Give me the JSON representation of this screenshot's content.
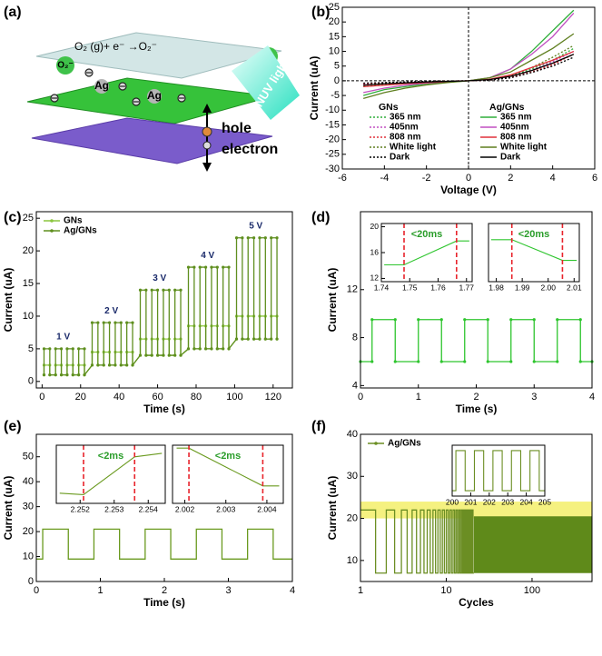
{
  "panel_a": {
    "panel_label": "(a)",
    "reaction": "O₂ (g)+ e⁻ →O₂⁻",
    "oxygen_labels": [
      "O₂⁻",
      "O₂"
    ],
    "silver_labels": [
      "Ag",
      "Ag"
    ],
    "light": "NUV light",
    "carriers": [
      "hole",
      "electron"
    ]
  },
  "chart_data": [
    {
      "type": "line",
      "panel_label": "(b)",
      "x_label": "Voltage (V)",
      "y_label": "Current (uA)",
      "x": [
        -5,
        -4,
        -3,
        -2,
        -1,
        0,
        1,
        2,
        3,
        4,
        5
      ],
      "series": [
        {
          "name": "365 nm",
          "color": "#2fae3a",
          "line_style": "dotted",
          "values": [
            -1.5,
            -1,
            -0.7,
            -0.4,
            -0.2,
            0,
            0.3,
            1.5,
            4,
            7,
            11
          ]
        },
        {
          "name": "405nm",
          "color": "#c04fc0",
          "line_style": "dotted",
          "values": [
            -1.2,
            -0.9,
            -0.6,
            -0.3,
            -0.1,
            0,
            0.3,
            1.3,
            3.5,
            6.5,
            10
          ]
        },
        {
          "name": "808 nm",
          "color": "#e0303a",
          "line_style": "dotted",
          "values": [
            -1,
            -0.8,
            -0.5,
            -0.3,
            -0.1,
            0,
            0.2,
            1.2,
            3,
            5.5,
            9
          ]
        },
        {
          "name": "White light",
          "color": "#5f7f1f",
          "line_style": "dotted",
          "values": [
            -2,
            -1.3,
            -0.8,
            -0.5,
            -0.2,
            0,
            0.4,
            1.8,
            4.5,
            8,
            12
          ]
        },
        {
          "name": "Dark",
          "color": "#000000",
          "line_style": "dotted",
          "values": [
            -0.8,
            -0.6,
            -0.4,
            -0.2,
            -0.1,
            0,
            0.2,
            1,
            2.8,
            5,
            8
          ]
        },
        {
          "name": "365 nm",
          "color": "#2fae3a",
          "line_style": "solid",
          "values": [
            -5,
            -3,
            -2,
            -1,
            -0.5,
            0,
            1,
            4,
            10,
            17,
            24
          ]
        },
        {
          "name": "405nm",
          "color": "#c04fc0",
          "line_style": "solid",
          "values": [
            -4,
            -2.5,
            -1.5,
            -0.8,
            -0.3,
            0,
            1,
            4,
            9,
            15,
            23
          ]
        },
        {
          "name": "808 nm",
          "color": "#e0303a",
          "line_style": "solid",
          "values": [
            -2,
            -1.5,
            -1,
            -0.6,
            -0.3,
            0,
            0.5,
            2,
            4.5,
            7,
            10
          ]
        },
        {
          "name": "White light",
          "color": "#5f7f1f",
          "line_style": "solid",
          "values": [
            -6,
            -4,
            -2.5,
            -1.4,
            -0.6,
            0,
            1,
            3,
            7,
            11,
            16
          ]
        },
        {
          "name": "Dark",
          "color": "#000000",
          "line_style": "solid",
          "values": [
            -1.5,
            -1,
            -0.7,
            -0.4,
            -0.2,
            0,
            0.4,
            1.5,
            3.5,
            6,
            9
          ]
        }
      ],
      "legend": "lower right",
      "legend_titles": [
        "GNs",
        "Ag/GNs"
      ],
      "zero_lines": true,
      "xlim": [
        -6,
        6
      ],
      "xticks": [
        -6,
        -4,
        -2,
        0,
        2,
        4,
        6
      ],
      "ylim": [
        -30,
        25
      ],
      "yticks": [
        -30,
        -25,
        -20,
        -15,
        -10,
        -5,
        0,
        5,
        10,
        15,
        20,
        25
      ]
    },
    {
      "type": "line",
      "panel_label": "(c)",
      "x_label": "Time (s)",
      "y_label": "Current (uA)",
      "x": [
        1,
        1,
        4,
        4,
        7,
        7,
        10,
        10,
        13,
        13,
        16,
        16,
        19,
        19,
        22,
        22,
        26,
        26,
        29,
        29,
        32,
        32,
        35,
        35,
        38,
        38,
        41,
        41,
        44,
        44,
        47,
        47,
        51,
        51,
        54,
        54,
        57,
        57,
        60,
        60,
        63,
        63,
        66,
        66,
        69,
        69,
        72,
        72,
        76,
        76,
        79,
        79,
        82,
        82,
        85,
        85,
        88,
        88,
        91,
        91,
        94,
        94,
        97,
        97,
        101,
        101,
        104,
        104,
        107,
        107,
        110,
        110,
        113,
        113,
        116,
        116,
        119,
        119,
        122,
        122
      ],
      "series": [
        {
          "name": "GNs",
          "color": "#8cc63f",
          "values": [
            1,
            2.5,
            2.5,
            1,
            1,
            2.5,
            2.5,
            1,
            1,
            2.5,
            2.5,
            1,
            1,
            2.5,
            2.5,
            1,
            2.5,
            4.5,
            4.5,
            2.5,
            2.5,
            4.5,
            4.5,
            2.5,
            2.5,
            4.5,
            4.5,
            2.5,
            2.5,
            4.5,
            4.5,
            2.5,
            4,
            6.5,
            6.5,
            4,
            4,
            6.5,
            6.5,
            4,
            4,
            6.5,
            6.5,
            4,
            4,
            6.5,
            6.5,
            4,
            5,
            8.5,
            8.5,
            5,
            5,
            8.5,
            8.5,
            5,
            5,
            8.5,
            8.5,
            5,
            5,
            8.5,
            8.5,
            5,
            6.5,
            10,
            10,
            6.5,
            6.5,
            10,
            10,
            6.5,
            6.5,
            10,
            10,
            6.5,
            6.5,
            10,
            10,
            6.5
          ]
        },
        {
          "name": "Ag/GNs",
          "color": "#5f8f1f",
          "values": [
            1,
            5,
            5,
            1,
            1,
            5,
            5,
            1,
            1,
            5,
            5,
            1,
            1,
            5,
            5,
            1,
            2.5,
            9,
            9,
            2.5,
            2.5,
            9,
            9,
            2.5,
            2.5,
            9,
            9,
            2.5,
            2.5,
            9,
            9,
            2.5,
            4,
            14,
            14,
            4,
            4,
            14,
            14,
            4,
            4,
            14,
            14,
            4,
            4,
            14,
            14,
            4,
            5,
            17.5,
            17.5,
            5,
            5,
            17.5,
            17.5,
            5,
            5,
            17.5,
            17.5,
            5,
            5,
            17.5,
            17.5,
            5,
            6.5,
            22,
            22,
            6.5,
            6.5,
            22,
            22,
            6.5,
            6.5,
            22,
            22,
            6.5,
            6.5,
            22,
            22,
            6.5
          ]
        }
      ],
      "annotations": [
        "1 V",
        "2 V",
        "3 V",
        "4 V",
        "5 V"
      ],
      "markers": true,
      "legend": "upper left",
      "xlim": [
        -3,
        130
      ],
      "xticks": [
        0,
        20,
        40,
        60,
        80,
        100,
        120
      ],
      "ylim": [
        -1,
        26
      ],
      "yticks": [
        0,
        5,
        10,
        15,
        20,
        25
      ]
    },
    {
      "type": "line",
      "panel_label": "(d)",
      "x_label": "Time (s)",
      "y_label": "Current (uA)",
      "x": [
        0,
        0.2,
        0.2,
        0.6,
        0.6,
        1,
        1,
        1.4,
        1.4,
        1.8,
        1.8,
        2.2,
        2.2,
        2.6,
        2.6,
        3,
        3,
        3.4,
        3.4,
        3.8,
        3.8,
        4
      ],
      "series": [
        {
          "name": "",
          "color": "#2ec52e",
          "values": [
            6,
            6,
            9.5,
            9.5,
            6,
            6,
            9.5,
            9.5,
            6,
            6,
            9.5,
            9.5,
            6,
            6,
            9.5,
            9.5,
            6,
            6,
            9.5,
            9.5,
            6,
            6
          ]
        }
      ],
      "markers": true,
      "xlim": [
        0,
        4
      ],
      "xticks": [
        0,
        1,
        2,
        3,
        4
      ],
      "ylim": [
        3.8,
        18.5
      ],
      "yticks": [
        4,
        8,
        12
      ],
      "insets": [
        {
          "type": "line",
          "label": "<20ms",
          "x": [
            1.741,
            1.748,
            1.7665,
            1.771
          ],
          "series": [
            {
              "name": "",
              "color": "#2ec52e",
              "values": [
                14.1,
                14.1,
                17.8,
                17.8
              ]
            }
          ],
          "vlines": [
            1.748,
            1.7665
          ],
          "vline_color": "#e8232b",
          "xlim": [
            1.74,
            1.772
          ],
          "xticks": [
            1.74,
            1.75,
            1.76,
            1.77
          ],
          "ylim": [
            11.5,
            20.5
          ],
          "yticks": [
            12,
            16,
            20
          ]
        },
        {
          "type": "line",
          "label": "<20ms",
          "x": [
            1.978,
            1.986,
            2.0055,
            2.011
          ],
          "series": [
            {
              "name": "",
              "color": "#2ec52e",
              "values": [
                18,
                18,
                14.8,
                14.8
              ]
            }
          ],
          "vlines": [
            1.986,
            2.0055
          ],
          "vline_color": "#e8232b",
          "xlim": [
            1.977,
            2.012
          ],
          "xticks": [
            1.98,
            1.99,
            {
              "value": 2,
              "label": "2.00"
            },
            2.01
          ],
          "ylim": [
            11.5,
            20.5
          ],
          "yticks": []
        }
      ]
    },
    {
      "type": "line",
      "panel_label": "(e)",
      "x_label": "Time (s)",
      "y_label": "Current (uA)",
      "x": [
        0,
        0.1,
        0.1,
        0.5,
        0.5,
        0.9,
        0.9,
        1.3,
        1.3,
        1.7,
        1.7,
        2.1,
        2.1,
        2.5,
        2.5,
        2.9,
        2.9,
        3.3,
        3.3,
        3.7,
        3.7,
        4
      ],
      "series": [
        {
          "name": "",
          "color": "#6a9a1f",
          "values": [
            9,
            9,
            21,
            21,
            9,
            9,
            21,
            21,
            9,
            9,
            21,
            21,
            9,
            9,
            21,
            21,
            9,
            9,
            21,
            21,
            9,
            9
          ]
        }
      ],
      "xlim": [
        0,
        4
      ],
      "xticks": [
        0,
        1,
        2,
        3,
        4
      ],
      "ylim": [
        0,
        59
      ],
      "yticks": [
        0,
        10,
        20,
        30,
        40,
        50
      ],
      "insets": [
        {
          "type": "line",
          "label": "<2ms",
          "x": [
            2.2514,
            2.2521,
            2.2536,
            2.2544
          ],
          "series": [
            {
              "name": "",
              "color": "#6a9a1f",
              "values": [
                33.5,
                33,
                46,
                47.2
              ]
            }
          ],
          "vlines": [
            2.2521,
            2.2536
          ],
          "vline_color": "#e8232b",
          "xlim": [
            2.2513,
            2.2545
          ],
          "xticks": [
            2.252,
            2.253,
            2.254
          ],
          "ylim": [
            30,
            50
          ],
          "yticks": []
        },
        {
          "type": "line",
          "label": "<2ms",
          "x": [
            2.0018,
            2.0021,
            2.0039,
            2.0043
          ],
          "series": [
            {
              "name": "",
              "color": "#6a9a1f",
              "values": [
                49,
                49,
                36,
                36
              ]
            }
          ],
          "vlines": [
            2.0021,
            2.0039
          ],
          "vline_color": "#e8232b",
          "xlim": [
            2.0017,
            2.0044
          ],
          "xticks": [
            2.002,
            2.003,
            2.004
          ],
          "ylim": [
            30,
            50
          ],
          "yticks": []
        }
      ]
    },
    {
      "type": "line",
      "panel_label": "(f)",
      "x_label": "Cycles",
      "y_label": "Current (uA)",
      "xscale": "log",
      "x": [
        1,
        1.5,
        1.5,
        2,
        2,
        2.5,
        2.5,
        3,
        3,
        3.5,
        3.5,
        4,
        4,
        4.5,
        4.5,
        5,
        5,
        5.5,
        5.5,
        6,
        6,
        6.5,
        6.5,
        7,
        7,
        7.5,
        7.5,
        8,
        8,
        8.5,
        8.5,
        9,
        9,
        9.5,
        9.5,
        10,
        10,
        10.5,
        10.5,
        11,
        11,
        11.5,
        11.5,
        12,
        12,
        12.5,
        12.5,
        13,
        13,
        13.5,
        13.5,
        14,
        14,
        14.5,
        14.5,
        15,
        15,
        15.5,
        15.5,
        16,
        16,
        16.5,
        16.5,
        17,
        17,
        17.5,
        17.5,
        18,
        18,
        18.5,
        18.5,
        19,
        19,
        19.5,
        19.5,
        20,
        20,
        20.5,
        20.5,
        21
      ],
      "series": [
        {
          "name": "Ag/GNs",
          "color": "#6b8e23",
          "values": [
            22,
            22,
            7,
            7,
            22,
            22,
            7,
            7,
            22,
            22,
            7,
            7,
            22,
            22,
            7,
            7,
            22,
            22,
            7,
            7,
            22,
            22,
            7,
            7,
            22,
            22,
            7,
            7,
            22,
            22,
            7,
            7,
            22,
            22,
            7,
            7,
            22,
            22,
            7,
            7,
            22,
            22,
            7,
            7,
            22,
            22,
            7,
            7,
            22,
            22,
            7,
            7,
            22,
            22,
            7,
            7,
            22,
            22,
            7,
            7,
            22,
            22,
            7,
            7,
            22,
            22,
            7,
            7,
            22,
            22,
            7,
            7,
            22,
            22,
            7,
            7,
            22,
            22,
            7,
            7
          ]
        }
      ],
      "band": {
        "x": [
          21,
          500
        ],
        "y": [
          7,
          20.5
        ],
        "color": "#5f8a1a"
      },
      "highlight": {
        "y": [
          20,
          24
        ],
        "color": "#f3ee6a"
      },
      "legend": "upper left",
      "xlim": [
        1,
        500
      ],
      "xticks": [
        1,
        10,
        100
      ],
      "ylim": [
        5,
        40
      ],
      "yticks": [
        10,
        20,
        30,
        40
      ],
      "insets": [
        {
          "type": "line",
          "x": [
            200,
            200.2,
            200.2,
            200.7,
            200.7,
            201.2,
            201.2,
            201.7,
            201.7,
            202.2,
            202.2,
            202.7,
            202.7,
            203.2,
            203.2,
            203.7,
            203.7,
            204.2,
            204.2,
            204.7,
            204.7,
            205
          ],
          "series": [
            {
              "name": "",
              "color": "#6b8e23",
              "values": [
                7,
                7,
                22,
                22,
                7,
                7,
                22,
                22,
                7,
                7,
                22,
                22,
                7,
                7,
                22,
                22,
                7,
                7,
                22,
                22,
                7,
                7
              ]
            }
          ],
          "xlim": [
            200,
            205
          ],
          "xticks": [
            200,
            201,
            202,
            203,
            204,
            205
          ],
          "ylim": [
            5,
            24
          ],
          "yticks": []
        }
      ]
    }
  ]
}
